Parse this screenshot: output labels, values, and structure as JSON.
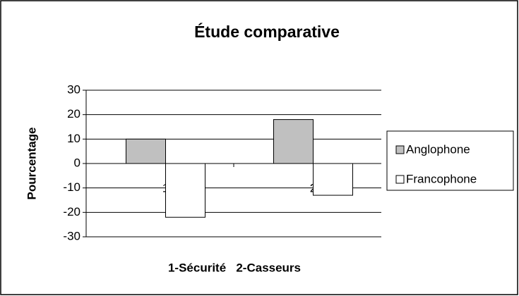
{
  "chart_data": {
    "type": "bar",
    "title": "Étude comparative",
    "y_label": "Pourcentage",
    "x_label": "1-Sécurité   2-Casseurs",
    "categories": [
      "1",
      "2"
    ],
    "series": [
      {
        "name": "Anglophone",
        "color": "#c0c0c0",
        "values": [
          10,
          18
        ]
      },
      {
        "name": "Francophone",
        "color": "#ffffff",
        "values": [
          -22,
          -13
        ]
      }
    ],
    "ylim": [
      -30,
      30
    ],
    "yticks": [
      30,
      20,
      10,
      0,
      -10,
      -20,
      -30
    ],
    "grid": true,
    "legend": "right"
  }
}
